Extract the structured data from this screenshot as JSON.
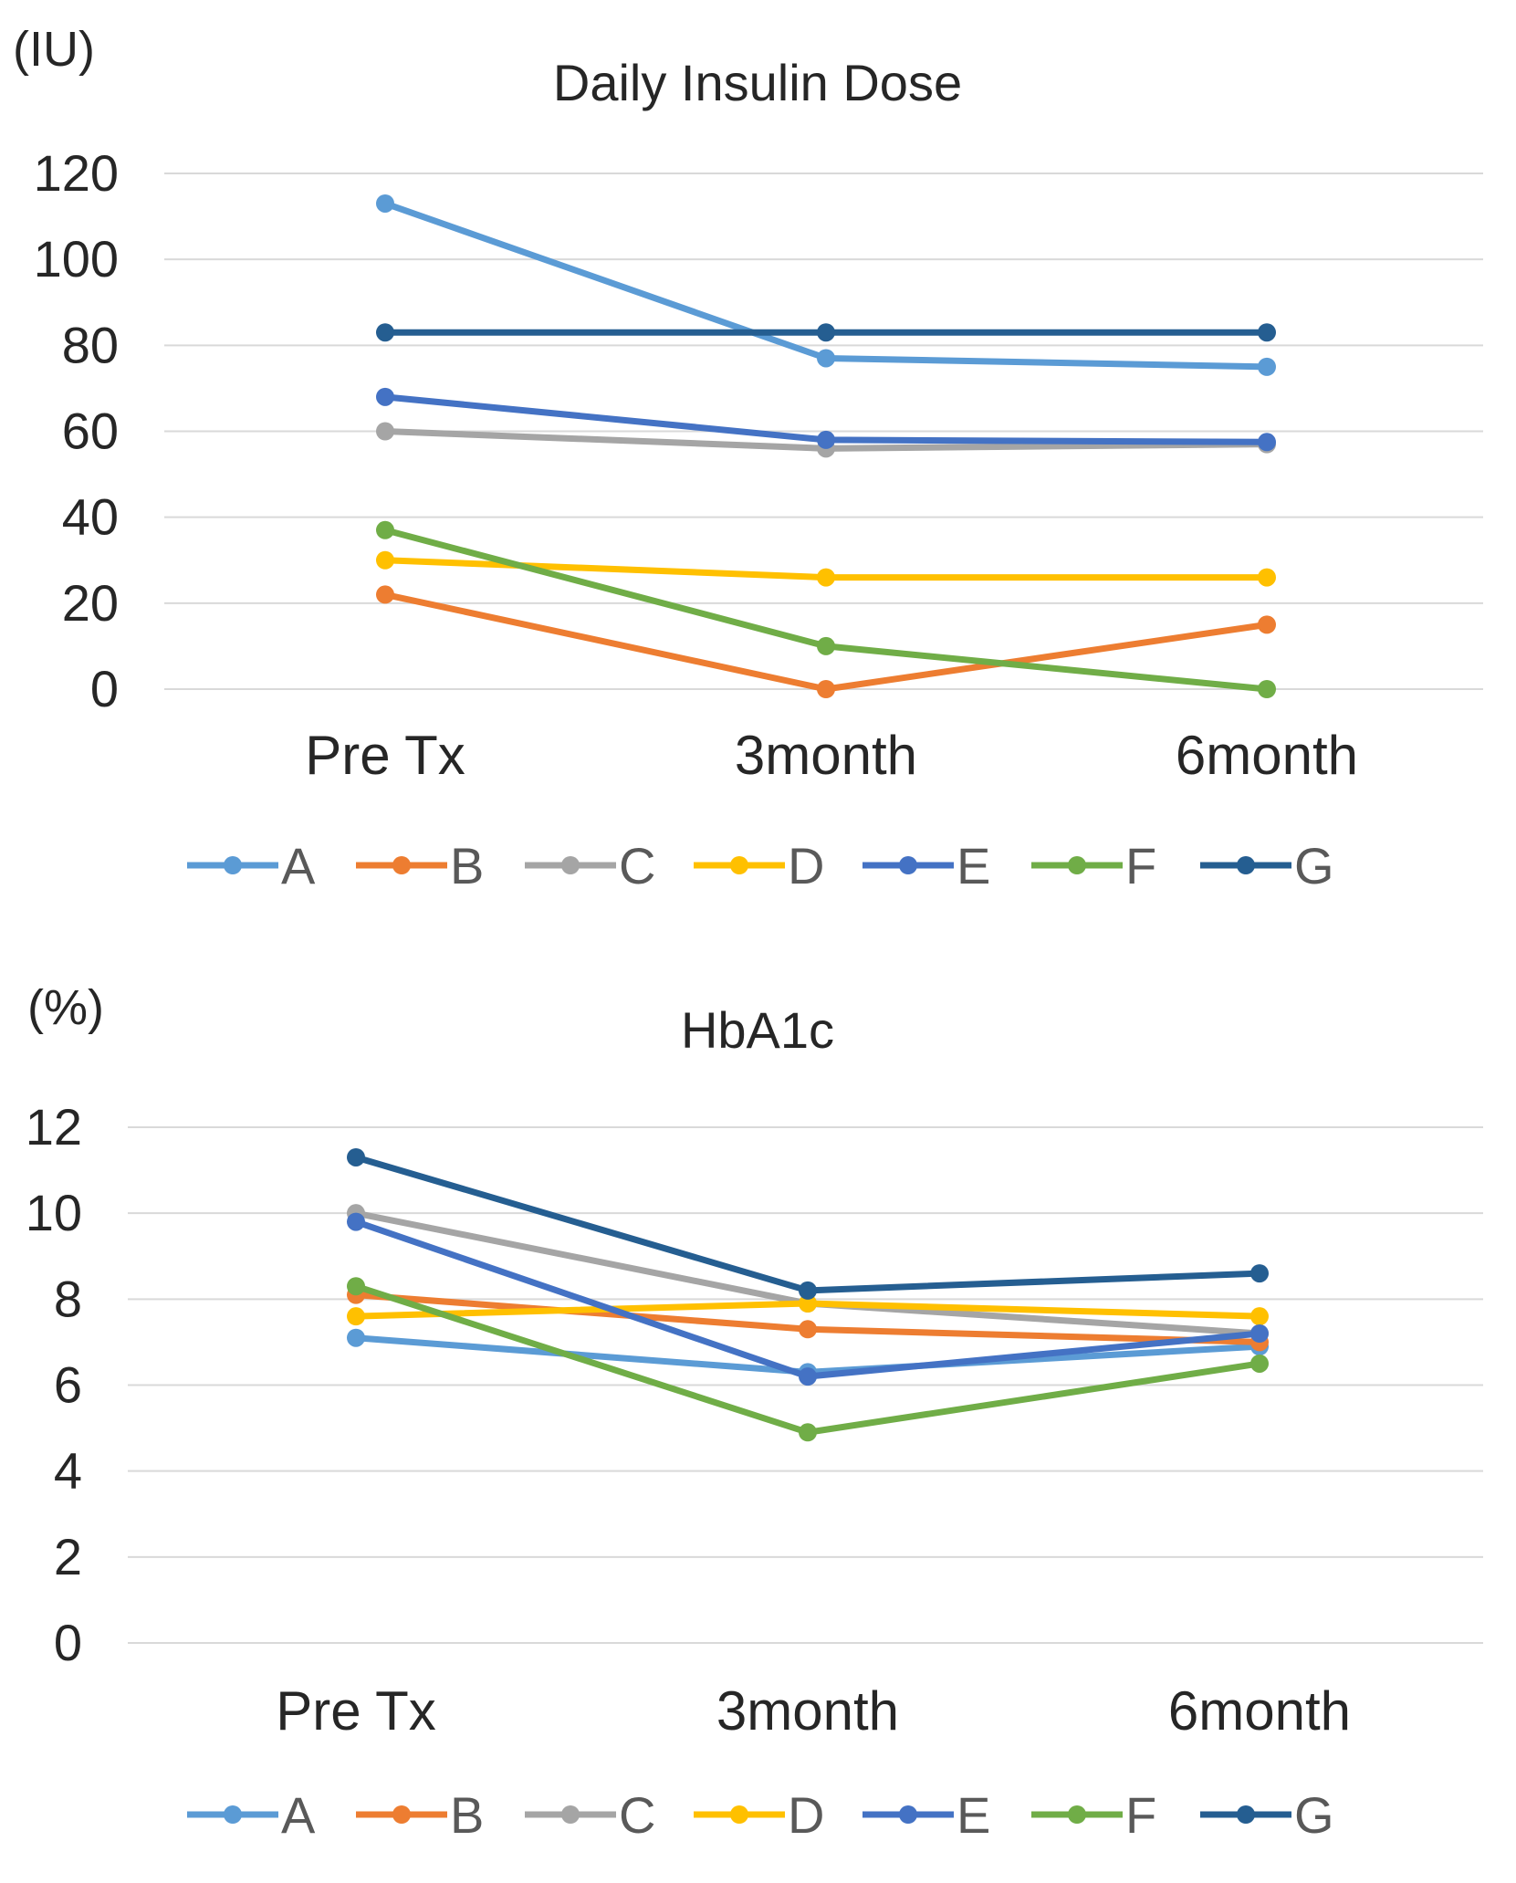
{
  "figure": {
    "chart_data": [
      {
        "type": "line",
        "title": "Daily Insulin Dose",
        "unit_label": "(IU)",
        "xlabel": "",
        "ylabel": "",
        "categories": [
          "Pre Tx",
          "3month",
          "6month"
        ],
        "yticks": [
          0,
          20,
          40,
          60,
          80,
          100,
          120
        ],
        "ylim": [
          0,
          120
        ],
        "grid": true,
        "legend_position": "bottom",
        "series": [
          {
            "name": "A",
            "color": "#5B9BD5",
            "values": [
              113,
              77,
              75
            ]
          },
          {
            "name": "B",
            "color": "#ED7D31",
            "values": [
              22,
              0,
              15
            ]
          },
          {
            "name": "C",
            "color": "#A5A5A5",
            "values": [
              60,
              56,
              57
            ]
          },
          {
            "name": "D",
            "color": "#FFC000",
            "values": [
              30,
              26,
              26
            ]
          },
          {
            "name": "E",
            "color": "#4472C4",
            "values": [
              68,
              58,
              57.5
            ]
          },
          {
            "name": "F",
            "color": "#70AD47",
            "values": [
              37,
              10,
              0
            ]
          },
          {
            "name": "G",
            "color": "#255E91",
            "values": [
              83,
              83,
              83
            ]
          }
        ]
      },
      {
        "type": "line",
        "title": "HbA1c",
        "unit_label": "(%)",
        "xlabel": "",
        "ylabel": "",
        "categories": [
          "Pre Tx",
          "3month",
          "6month"
        ],
        "yticks": [
          0,
          2,
          4,
          6,
          8,
          10,
          12
        ],
        "ylim": [
          0,
          12
        ],
        "grid": true,
        "legend_position": "bottom",
        "series": [
          {
            "name": "A",
            "color": "#5B9BD5",
            "values": [
              7.1,
              6.3,
              6.9
            ]
          },
          {
            "name": "B",
            "color": "#ED7D31",
            "values": [
              8.1,
              7.3,
              7.0
            ]
          },
          {
            "name": "C",
            "color": "#A5A5A5",
            "values": [
              10.0,
              7.9,
              7.2
            ]
          },
          {
            "name": "D",
            "color": "#FFC000",
            "values": [
              7.6,
              7.9,
              7.6
            ]
          },
          {
            "name": "E",
            "color": "#4472C4",
            "values": [
              9.8,
              6.2,
              7.2
            ]
          },
          {
            "name": "F",
            "color": "#70AD47",
            "values": [
              8.3,
              4.9,
              6.5
            ]
          },
          {
            "name": "G",
            "color": "#255E91",
            "values": [
              11.3,
              8.2,
              8.6
            ]
          }
        ]
      }
    ]
  }
}
